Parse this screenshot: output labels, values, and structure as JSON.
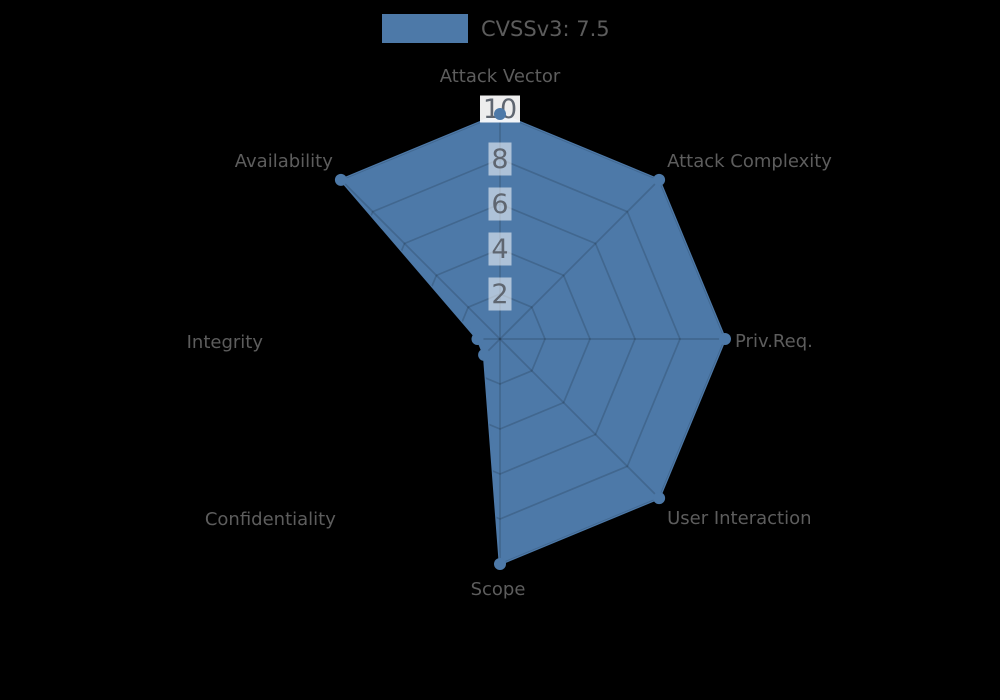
{
  "legend": {
    "label": "CVSSv3: 7.5",
    "swatch_color": "#4d79a8"
  },
  "chart_data": {
    "type": "radar",
    "categories": [
      "Attack Vector",
      "Attack Complexity",
      "Priv.Req.",
      "User Interaction",
      "Scope",
      "Confidentiality",
      "Integrity",
      "Availability"
    ],
    "series": [
      {
        "name": "CVSSv3: 7.5",
        "values": [
          10,
          10,
          10,
          10,
          10,
          1,
          1,
          10
        ],
        "color": "#4d79a8"
      }
    ],
    "radial_ticks": [
      2,
      4,
      6,
      8,
      10
    ],
    "r_min": 0,
    "r_max": 10,
    "grid": "on",
    "legend_position": "top-center",
    "colors": {
      "background": "#000000",
      "fill": "#4d79a8",
      "marker": "#4d79a8",
      "grid_line": "rgba(0,0,0,0.15)",
      "category_label": "#5d5d5d",
      "tick_text": "#5f6670",
      "tick_box": "#ffffff"
    }
  }
}
